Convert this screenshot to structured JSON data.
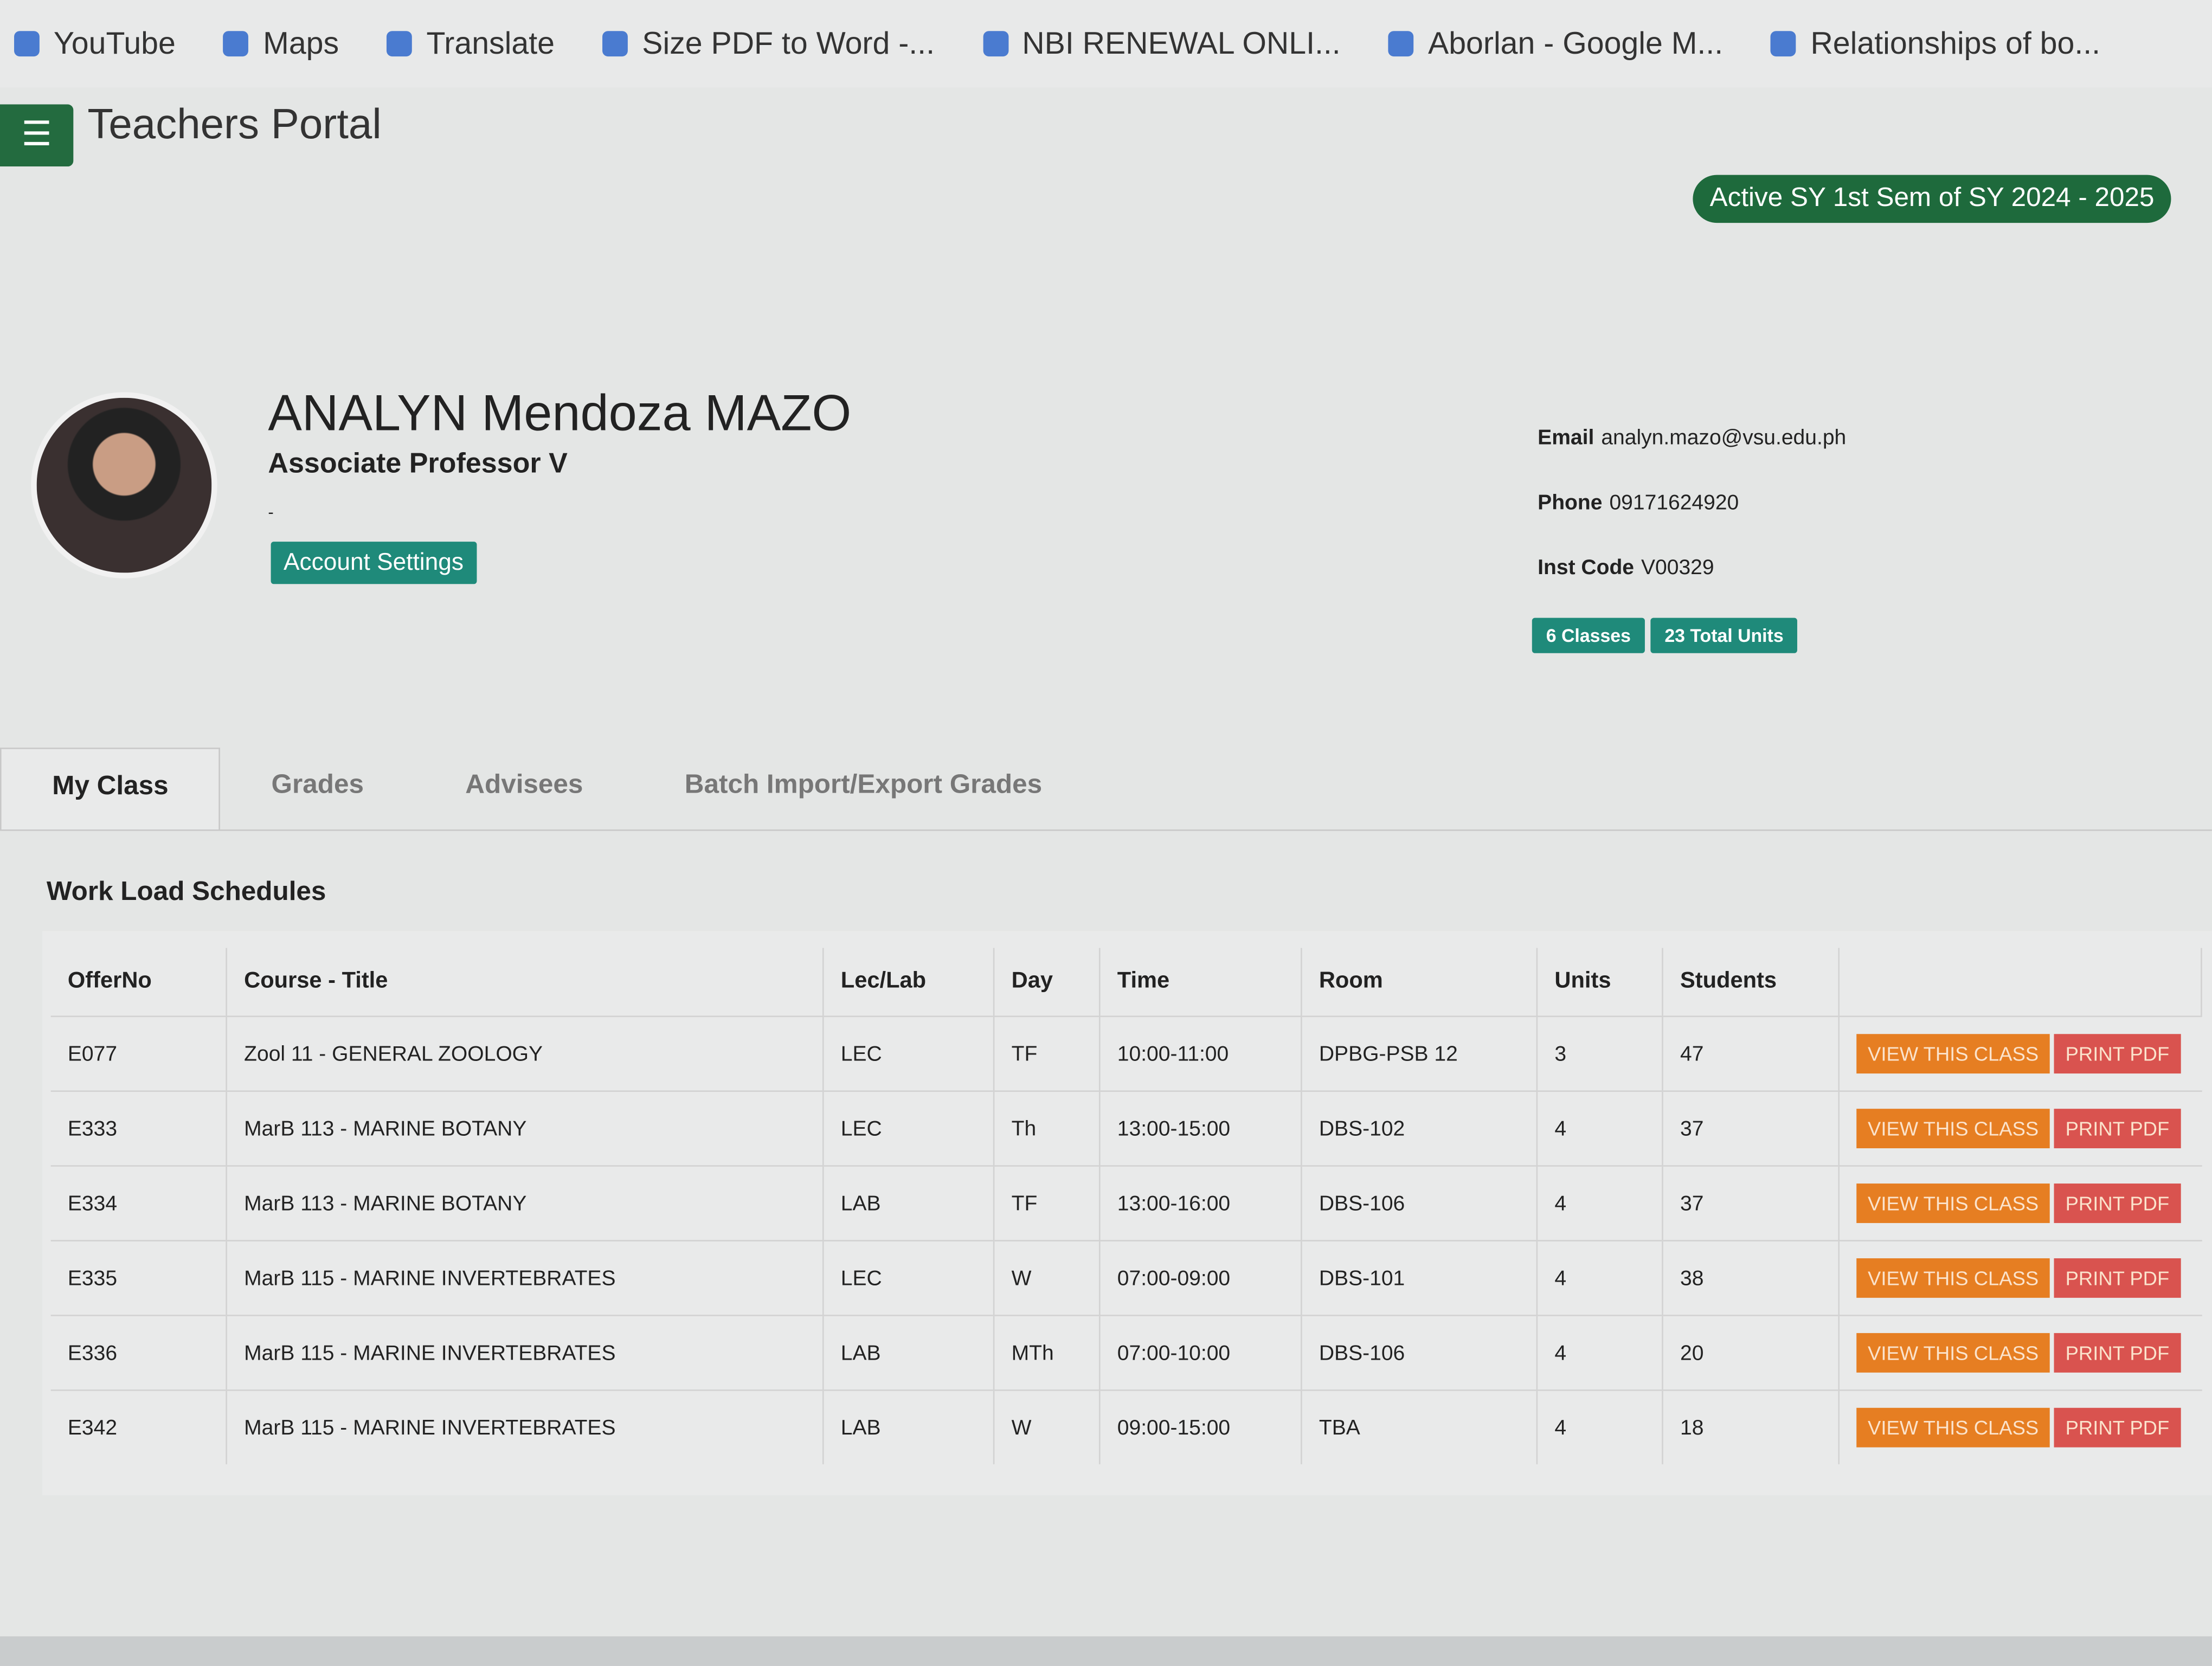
{
  "bookmarks": [
    "YouTube",
    "Maps",
    "Translate",
    "Size PDF to Word -...",
    "NBI RENEWAL ONLI...",
    "Aborlan - Google M...",
    "Relationships of bo..."
  ],
  "header": {
    "title": "Teachers Portal",
    "active_sy": "Active SY 1st Sem of SY 2024 - 2025"
  },
  "profile": {
    "name": "ANALYN Mendoza MAZO",
    "position": "Associate Professor V",
    "extra": "-",
    "account_button": "Account Settings",
    "contacts": [
      {
        "label": "Email",
        "value": "analyn.mazo@vsu.edu.ph"
      },
      {
        "label": "Phone",
        "value": "09171624920"
      },
      {
        "label": "Inst Code",
        "value": "V00329"
      }
    ],
    "badges": [
      "6 Classes",
      "23 Total Units"
    ]
  },
  "tabs": [
    "My Class",
    "Grades",
    "Advisees",
    "Batch Import/Export Grades"
  ],
  "section_title": "Work Load Schedules",
  "table": {
    "headers": [
      "OfferNo",
      "Course - Title",
      "Lec/Lab",
      "Day",
      "Time",
      "Room",
      "Units",
      "Students"
    ],
    "rows": [
      [
        "E077",
        "Zool 11 - GENERAL ZOOLOGY",
        "LEC",
        "TF",
        "10:00-11:00",
        "DPBG-PSB 12",
        "3",
        "47"
      ],
      [
        "E333",
        "MarB 113 - MARINE BOTANY",
        "LEC",
        "Th",
        "13:00-15:00",
        "DBS-102",
        "4",
        "37"
      ],
      [
        "E334",
        "MarB 113 - MARINE BOTANY",
        "LAB",
        "TF",
        "13:00-16:00",
        "DBS-106",
        "4",
        "37"
      ],
      [
        "E335",
        "MarB 115 - MARINE INVERTEBRATES",
        "LEC",
        "W",
        "07:00-09:00",
        "DBS-101",
        "4",
        "38"
      ],
      [
        "E336",
        "MarB 115 - MARINE INVERTEBRATES",
        "LAB",
        "MTh",
        "07:00-10:00",
        "DBS-106",
        "4",
        "20"
      ],
      [
        "E342",
        "MarB 115 - MARINE INVERTEBRATES",
        "LAB",
        "W",
        "09:00-15:00",
        "TBA",
        "4",
        "18"
      ]
    ],
    "actions": [
      "VIEW THIS CLASS",
      "PRINT PDF"
    ]
  }
}
